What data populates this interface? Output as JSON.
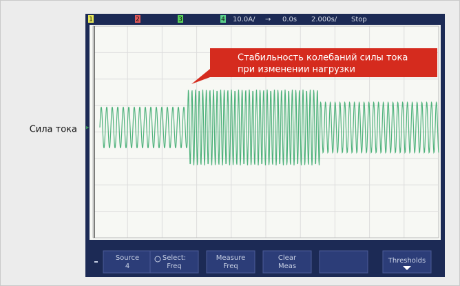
{
  "screen": {
    "side_label": "Сила тока",
    "status_bar": {
      "channels": [
        "1",
        "2",
        "3",
        "4"
      ],
      "scale": "10.0A/",
      "arrow": "→",
      "delay": "0.0s",
      "timebase": "2.000s/",
      "state": "Stop"
    },
    "annotation": {
      "lines": [
        "Стабильность колебаний силы тока",
        "при изменении нагрузки"
      ]
    },
    "softkeys": [
      {
        "label": "Source",
        "value": "4"
      },
      {
        "label": "Select:",
        "value": "Freq"
      },
      {
        "label": "Measure",
        "value": "Freq"
      },
      {
        "label": "Clear",
        "value": "Meas"
      },
      {
        "label": "Thresholds"
      }
    ]
  }
}
